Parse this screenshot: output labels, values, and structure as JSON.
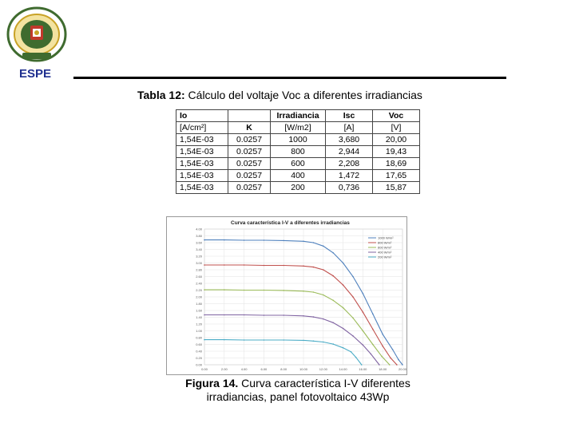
{
  "header": {
    "institution": "ESPE"
  },
  "table_caption": {
    "label": "Tabla 12:",
    "text": " Cálculo del voltaje Voc a diferentes irradiancias"
  },
  "table": {
    "headers_top": [
      "Io",
      "",
      "Irradiancia",
      "Isc",
      "Voc"
    ],
    "headers_units": [
      "[A/cm²]",
      "K",
      "[W/m2]",
      "[A]",
      "[V]"
    ],
    "rows": [
      [
        "1,54E-03",
        "0.0257",
        "1000",
        "3,680",
        "20,00"
      ],
      [
        "1,54E-03",
        "0.0257",
        "800",
        "2,944",
        "19,43"
      ],
      [
        "1,54E-03",
        "0.0257",
        "600",
        "2,208",
        "18,69"
      ],
      [
        "1,54E-03",
        "0.0257",
        "400",
        "1,472",
        "17,65"
      ],
      [
        "1,54E-03",
        "0.0257",
        "200",
        "0,736",
        "15,87"
      ]
    ]
  },
  "figure_caption": {
    "label": "Figura 14.",
    "text": " Curva característica I-V diferentes irradiancias, panel fotovoltaico 43Wp"
  },
  "chart_data": {
    "type": "line",
    "title": "Curva característica I-V a diferentes irradiancias",
    "xlabel": "",
    "ylabel": "",
    "xlim": [
      0,
      20
    ],
    "ylim": [
      0,
      4
    ],
    "grid": true,
    "legend_position": "top-right",
    "x_ticks": [
      "0.00",
      "2.00",
      "4.00",
      "6.00",
      "8.00",
      "10.00",
      "12.00",
      "14.00",
      "16.00",
      "18.00",
      "20.00"
    ],
    "y_ticks": [
      "0.00",
      "0.20",
      "0.40",
      "0.60",
      "0.80",
      "1.00",
      "1.20",
      "1.40",
      "1.60",
      "1.80",
      "2.00",
      "2.20",
      "2.40",
      "2.60",
      "2.80",
      "3.00",
      "3.20",
      "3.40",
      "3.60",
      "3.80",
      "4.00"
    ],
    "series": [
      {
        "name": "1000 W/m²",
        "color": "#4f81bd",
        "points": [
          [
            0,
            3.68
          ],
          [
            2,
            3.68
          ],
          [
            4,
            3.67
          ],
          [
            6,
            3.67
          ],
          [
            8,
            3.66
          ],
          [
            10,
            3.64
          ],
          [
            11,
            3.6
          ],
          [
            12,
            3.5
          ],
          [
            13,
            3.3
          ],
          [
            14,
            3.0
          ],
          [
            15,
            2.6
          ],
          [
            16,
            2.1
          ],
          [
            17,
            1.5
          ],
          [
            18,
            0.9
          ],
          [
            19,
            0.45
          ],
          [
            19.6,
            0.15
          ],
          [
            20,
            0
          ]
        ]
      },
      {
        "name": "800 W/m²",
        "color": "#c0504d",
        "points": [
          [
            0,
            2.94
          ],
          [
            2,
            2.94
          ],
          [
            4,
            2.94
          ],
          [
            6,
            2.93
          ],
          [
            8,
            2.93
          ],
          [
            10,
            2.91
          ],
          [
            11,
            2.88
          ],
          [
            12,
            2.8
          ],
          [
            13,
            2.62
          ],
          [
            14,
            2.35
          ],
          [
            15,
            2.0
          ],
          [
            16,
            1.55
          ],
          [
            17,
            1.05
          ],
          [
            18,
            0.55
          ],
          [
            18.8,
            0.2
          ],
          [
            19.43,
            0
          ]
        ]
      },
      {
        "name": "600 W/m²",
        "color": "#9bbb59",
        "points": [
          [
            0,
            2.21
          ],
          [
            2,
            2.21
          ],
          [
            4,
            2.2
          ],
          [
            6,
            2.2
          ],
          [
            8,
            2.19
          ],
          [
            10,
            2.17
          ],
          [
            11,
            2.14
          ],
          [
            12,
            2.06
          ],
          [
            13,
            1.9
          ],
          [
            14,
            1.68
          ],
          [
            15,
            1.38
          ],
          [
            16,
            1.0
          ],
          [
            17,
            0.6
          ],
          [
            17.9,
            0.25
          ],
          [
            18.69,
            0
          ]
        ]
      },
      {
        "name": "400 W/m²",
        "color": "#8064a2",
        "points": [
          [
            0,
            1.47
          ],
          [
            2,
            1.47
          ],
          [
            4,
            1.47
          ],
          [
            6,
            1.46
          ],
          [
            8,
            1.46
          ],
          [
            10,
            1.44
          ],
          [
            11,
            1.41
          ],
          [
            12,
            1.35
          ],
          [
            13,
            1.24
          ],
          [
            14,
            1.07
          ],
          [
            15,
            0.85
          ],
          [
            16,
            0.58
          ],
          [
            16.8,
            0.32
          ],
          [
            17.65,
            0
          ]
        ]
      },
      {
        "name": "200 W/m²",
        "color": "#4bacc6",
        "points": [
          [
            0,
            0.74
          ],
          [
            2,
            0.74
          ],
          [
            4,
            0.73
          ],
          [
            6,
            0.73
          ],
          [
            8,
            0.73
          ],
          [
            10,
            0.72
          ],
          [
            11,
            0.7
          ],
          [
            12,
            0.67
          ],
          [
            13,
            0.61
          ],
          [
            14,
            0.5
          ],
          [
            14.8,
            0.38
          ],
          [
            15.3,
            0.22
          ],
          [
            15.87,
            0
          ]
        ]
      }
    ]
  },
  "colors": {
    "espe_blue": "#1f2f8f",
    "crest_green": "#3f6b2f",
    "crest_gold": "#c9a227",
    "crest_red": "#c0392b"
  }
}
